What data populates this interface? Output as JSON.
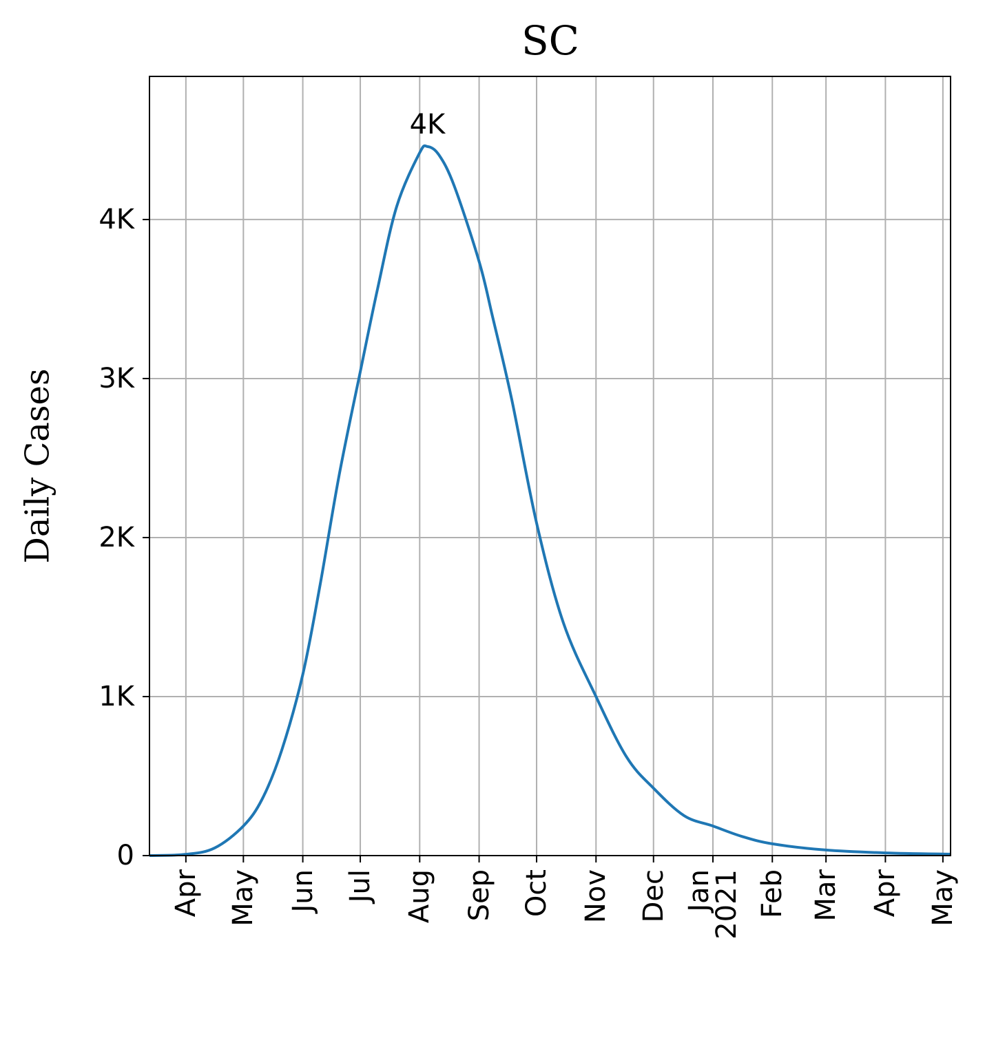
{
  "chart_data": {
    "type": "line",
    "title": "SC",
    "y_label": "Daily Cases",
    "x": [
      -19,
      0,
      15,
      30,
      40,
      50,
      61,
      70,
      80,
      91,
      100,
      110,
      122,
      126,
      132,
      140,
      153,
      160,
      170,
      183,
      197,
      214,
      230,
      244,
      260,
      275,
      290,
      306,
      334,
      365,
      399
    ],
    "series": [
      {
        "name": "SC",
        "color": "#1f77b4",
        "values": [
          0,
          8,
          48,
          186,
          360,
          662,
          1139,
          1700,
          2394,
          3043,
          3563,
          4082,
          4420,
          4459,
          4407,
          4212,
          3736,
          3390,
          2870,
          2091,
          1463,
          1000,
          619,
          424,
          251,
          186,
          121,
          74,
          35,
          17,
          9
        ]
      }
    ],
    "annotations": [
      {
        "text": "4K",
        "x": 126,
        "y": 4459
      }
    ],
    "xlim": [
      -19,
      399
    ],
    "xticks": [
      {
        "value": 0,
        "label": "Apr"
      },
      {
        "value": 30,
        "label": "May"
      },
      {
        "value": 61,
        "label": "Jun"
      },
      {
        "value": 91,
        "label": "Jul"
      },
      {
        "value": 122,
        "label": "Aug"
      },
      {
        "value": 153,
        "label": "Sep"
      },
      {
        "value": 183,
        "label": "Oct"
      },
      {
        "value": 214,
        "label": "Nov"
      },
      {
        "value": 244,
        "label": "Dec"
      },
      {
        "value": 275,
        "label": "Jan\n2021"
      },
      {
        "value": 306,
        "label": "Feb"
      },
      {
        "value": 334,
        "label": "Mar"
      },
      {
        "value": 365,
        "label": "Apr"
      },
      {
        "value": 395,
        "label": "May"
      }
    ],
    "ylim": [
      0,
      4900
    ],
    "yticks": [
      0,
      {
        "value": 1000,
        "label": "1K"
      },
      {
        "value": 2000,
        "label": "2K"
      },
      {
        "value": 3000,
        "label": "3K"
      },
      {
        "value": 4000,
        "label": "4K"
      }
    ],
    "grid": true
  }
}
